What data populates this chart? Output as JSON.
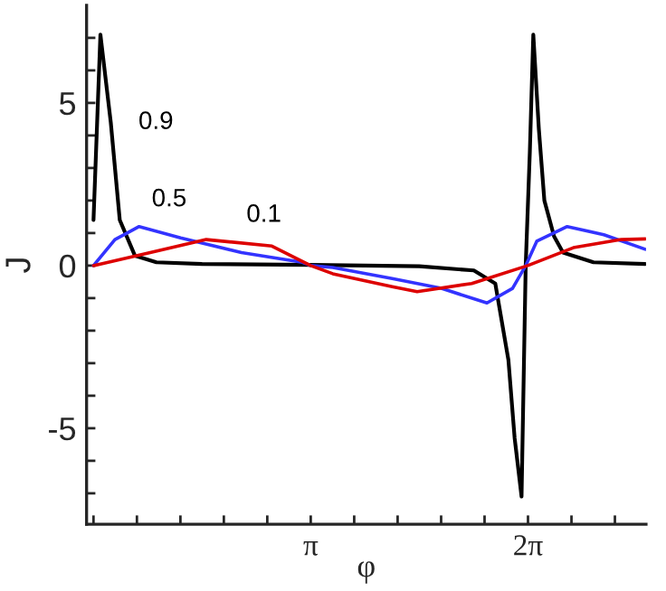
{
  "chart_data": {
    "type": "line",
    "xlabel": "φ",
    "ylabel": "J",
    "series": [
      {
        "name": "0.9",
        "color": "#000000",
        "x": [
          0,
          0.1,
          0.25,
          0.38,
          0.6,
          0.91,
          1.57,
          3.14,
          4.71,
          5.5,
          5.81,
          6.0,
          6.09,
          6.19,
          6.25,
          6.31,
          6.36,
          6.44,
          6.52,
          6.66,
          6.79,
          7.23,
          7.98
        ],
        "values": [
          1.4,
          7.1,
          4.4,
          1.4,
          0.3,
          0.1,
          0.05,
          0.02,
          -0.02,
          -0.15,
          -0.55,
          -2.9,
          -5.3,
          -7.1,
          0,
          3.5,
          7.1,
          4.2,
          2.0,
          0.9,
          0.4,
          0.1,
          0.05
        ]
      },
      {
        "name": "0.5",
        "color": "#3333ff",
        "x": [
          0,
          0.31,
          0.66,
          1.26,
          2.14,
          3.02,
          3.14,
          3.46,
          4.32,
          5.03,
          5.69,
          6.06,
          6.25,
          6.41,
          6.85,
          7.38,
          7.98
        ],
        "values": [
          0,
          0.8,
          1.2,
          0.85,
          0.4,
          0.1,
          0,
          -0.06,
          -0.4,
          -0.7,
          -1.15,
          -0.7,
          0,
          0.75,
          1.2,
          0.95,
          0.5
        ]
      },
      {
        "name": "0.1",
        "color": "#dd0000",
        "x": [
          0,
          0.82,
          1.63,
          2.58,
          3.14,
          3.46,
          4.32,
          4.68,
          5.47,
          6.28,
          6.94,
          7.63,
          7.98
        ],
        "values": [
          0,
          0.4,
          0.8,
          0.6,
          0,
          -0.25,
          -0.65,
          -0.8,
          -0.55,
          0,
          0.55,
          0.8,
          0.82
        ]
      }
    ],
    "xlim": [
      -0.1,
      7.99
    ],
    "ylim": [
      -7.95,
      8.0
    ],
    "xticks": [
      {
        "value": 0,
        "label": null
      },
      {
        "value": 0.628,
        "label": null
      },
      {
        "value": 1.257,
        "label": null
      },
      {
        "value": 1.885,
        "label": null
      },
      {
        "value": 2.513,
        "label": null
      },
      {
        "value": 3.1416,
        "label": "π"
      },
      {
        "value": 3.77,
        "label": null
      },
      {
        "value": 4.398,
        "label": null
      },
      {
        "value": 5.027,
        "label": null
      },
      {
        "value": 5.655,
        "label": null
      },
      {
        "value": 6.2832,
        "label": "2π"
      },
      {
        "value": 6.912,
        "label": null
      },
      {
        "value": 7.54,
        "label": null
      }
    ],
    "yticks": [
      {
        "value": -7,
        "label": null
      },
      {
        "value": -6,
        "label": null
      },
      -5,
      {
        "value": -4,
        "label": null
      },
      {
        "value": -3,
        "label": null
      },
      {
        "value": -2,
        "label": null
      },
      {
        "value": -1,
        "label": null
      },
      0,
      {
        "value": 1,
        "label": null
      },
      {
        "value": 2,
        "label": null
      },
      {
        "value": 3,
        "label": null
      },
      {
        "value": 4,
        "label": null
      },
      5,
      {
        "value": 6,
        "label": null
      },
      {
        "value": 7,
        "label": null
      }
    ],
    "grid": false,
    "legend": false,
    "marker": "none",
    "line_style": "solid"
  }
}
